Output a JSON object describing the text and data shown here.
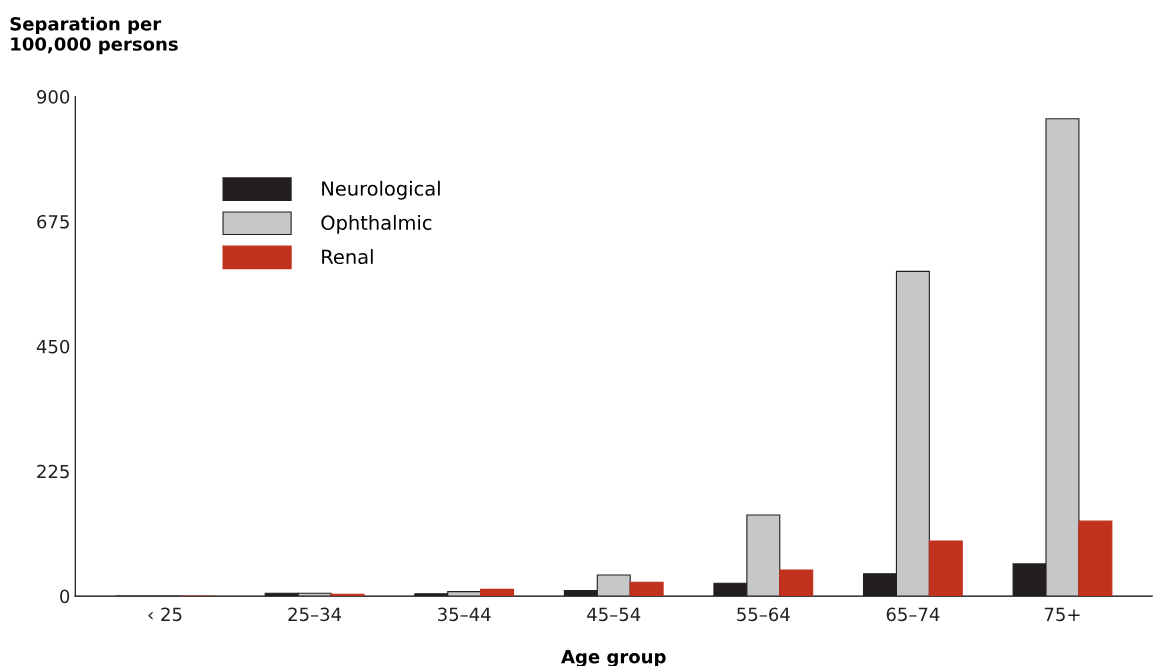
{
  "chart_data": {
    "type": "bar",
    "ylabel": "Separation per\n100,000 persons",
    "xlabel": "Age group",
    "categories": [
      "‹ 25",
      "25–34",
      "35–44",
      "45–54",
      "55–64",
      "65–74",
      "75+"
    ],
    "series": [
      {
        "name": "Neurological",
        "color": "#231f20",
        "values": [
          null,
          5,
          4,
          10,
          23,
          40,
          58
        ]
      },
      {
        "name": "Ophthalmic",
        "color": "#c6c7c9",
        "values": [
          null,
          5,
          8,
          38,
          146,
          585,
          860
        ]
      },
      {
        "name": "Renal",
        "color": "#c0311e",
        "values": [
          null,
          3,
          12,
          25,
          47,
          99,
          135
        ]
      }
    ],
    "ylim": [
      0,
      900
    ],
    "yticks": [
      0,
      225,
      450,
      675,
      900
    ],
    "grid": false,
    "legend": "top left"
  }
}
